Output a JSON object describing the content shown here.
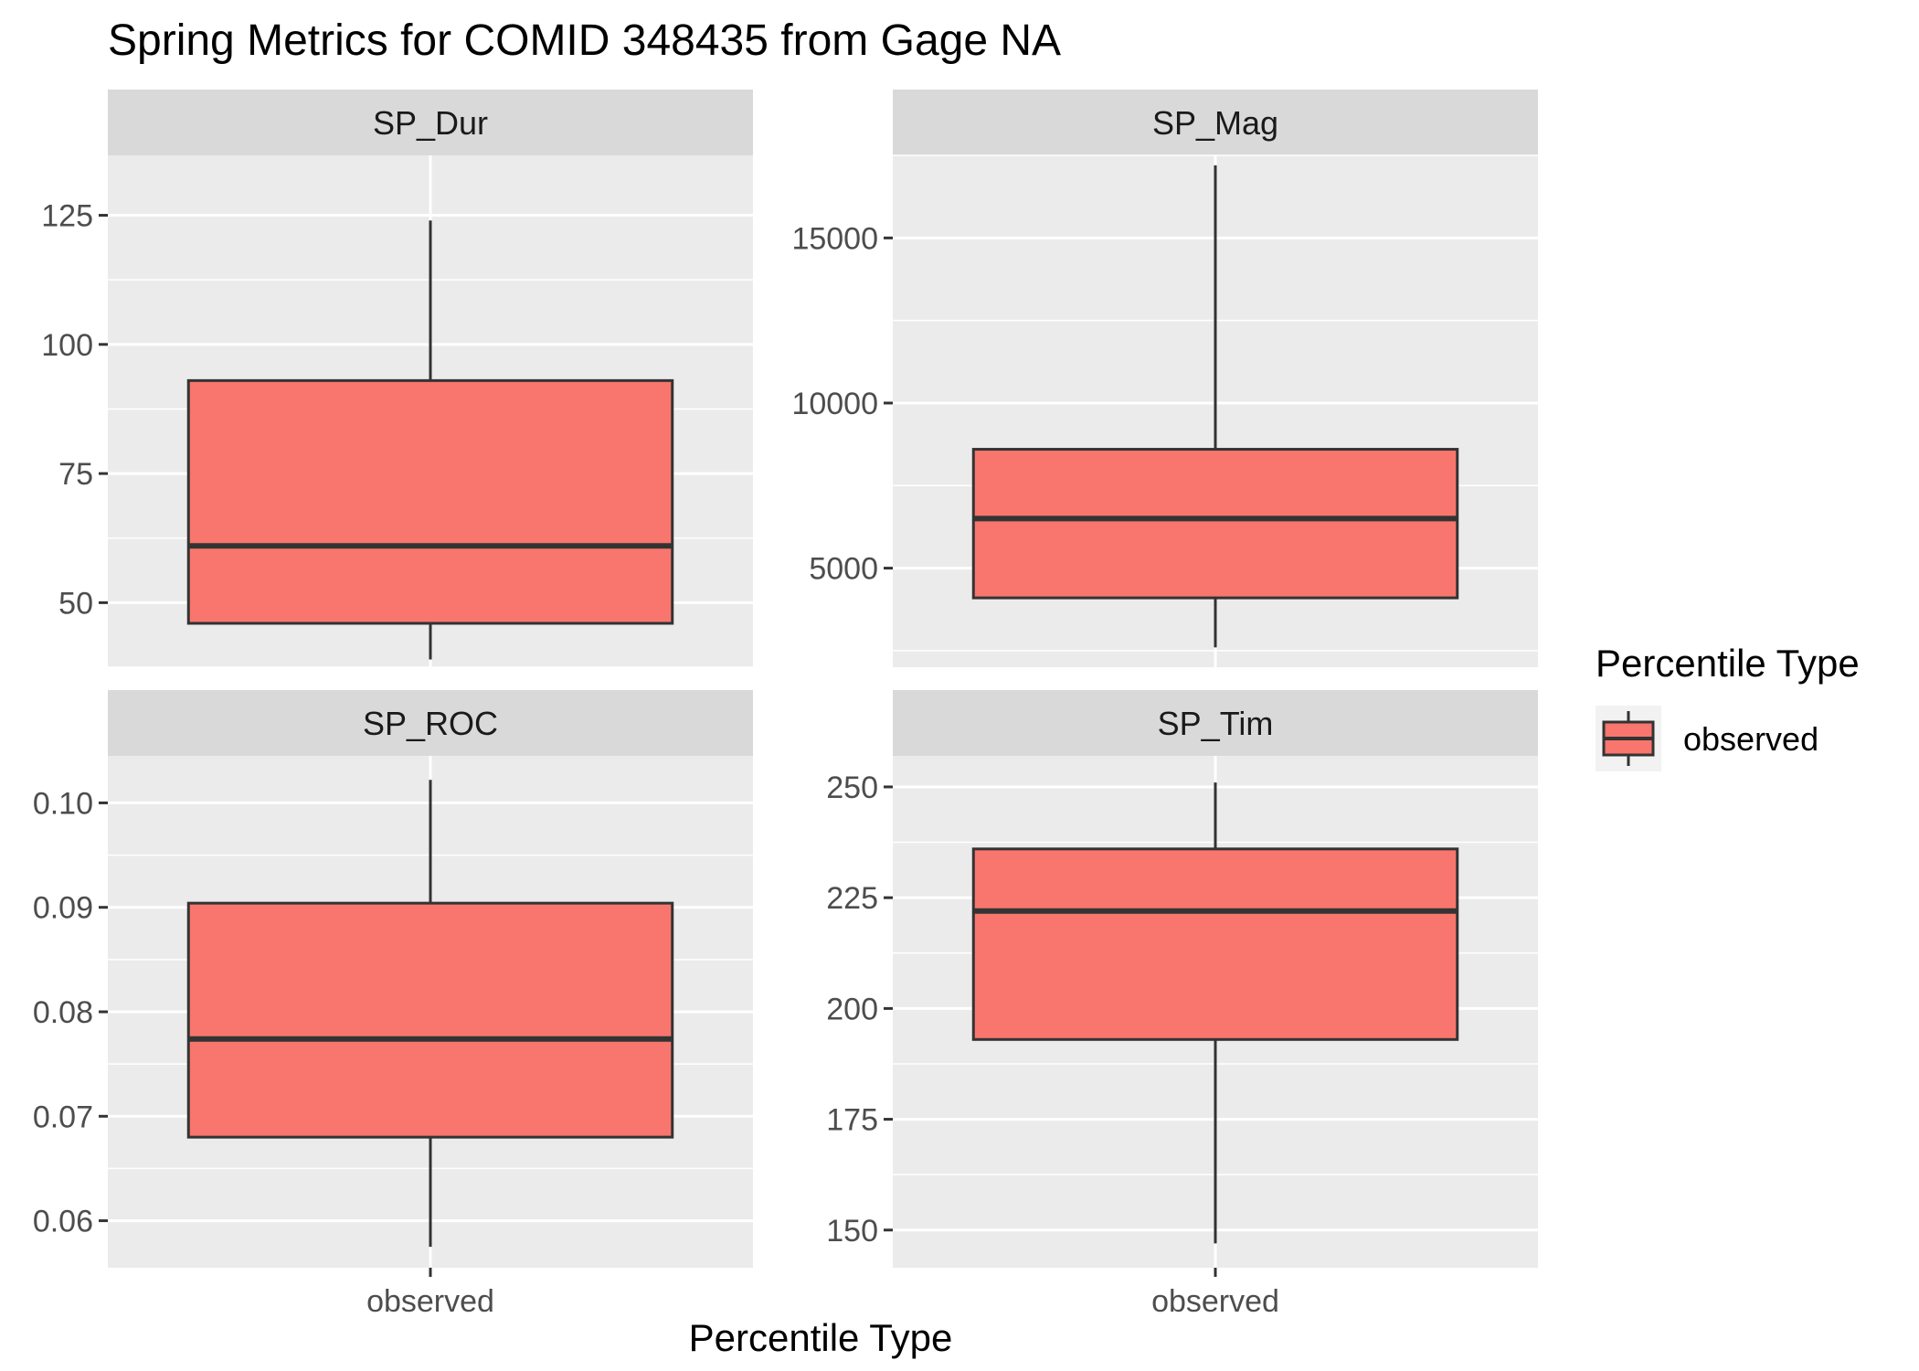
{
  "chart_data": {
    "type": "boxplot",
    "title": "Spring Metrics for COMID 348435 from Gage NA",
    "xlabel": "Percentile Type",
    "ylabel": "",
    "grid": true,
    "legend": {
      "title": "Percentile Type",
      "placement": "right",
      "entries": [
        {
          "label": "observed",
          "color": "#F8766D"
        }
      ]
    },
    "colors": {
      "fill": "#F8766D",
      "outline": "#333333",
      "panel_bg": "#EBEBEB",
      "strip_bg": "#D9D9D9",
      "grid": "#FFFFFF"
    },
    "x_categories": [
      "observed"
    ],
    "panels": [
      {
        "name": "SP_Dur",
        "ylim": [
          37.5,
          136.6
        ],
        "ticks": [
          50,
          75,
          100,
          125
        ],
        "tick_labels": [
          "50",
          "75",
          "100",
          "125"
        ],
        "boxes": [
          {
            "category": "observed",
            "lower": 39,
            "q1": 46,
            "median": 61,
            "q3": 93,
            "upper": 124
          }
        ]
      },
      {
        "name": "SP_Mag",
        "ylim": [
          2000,
          17500
        ],
        "ticks": [
          5000,
          10000,
          15000
        ],
        "tick_labels": [
          "5000",
          "10000",
          "15000"
        ],
        "boxes": [
          {
            "category": "observed",
            "lower": 2600,
            "q1": 4100,
            "median": 6500,
            "q3": 8600,
            "upper": 17200
          }
        ]
      },
      {
        "name": "SP_ROC",
        "ylim": [
          0.0555,
          0.1045
        ],
        "ticks": [
          0.06,
          0.07,
          0.08,
          0.09,
          0.1
        ],
        "tick_labels": [
          "0.06",
          "0.07",
          "0.08",
          "0.09",
          "0.10"
        ],
        "boxes": [
          {
            "category": "observed",
            "lower": 0.0575,
            "q1": 0.068,
            "median": 0.0774,
            "q3": 0.0904,
            "upper": 0.1022
          }
        ]
      },
      {
        "name": "SP_Tim",
        "ylim": [
          141.5,
          257
        ],
        "ticks": [
          150,
          175,
          200,
          225,
          250
        ],
        "tick_labels": [
          "150",
          "175",
          "200",
          "225",
          "250"
        ],
        "boxes": [
          {
            "category": "observed",
            "lower": 147,
            "q1": 193,
            "median": 222,
            "q3": 236,
            "upper": 251
          }
        ]
      }
    ]
  }
}
